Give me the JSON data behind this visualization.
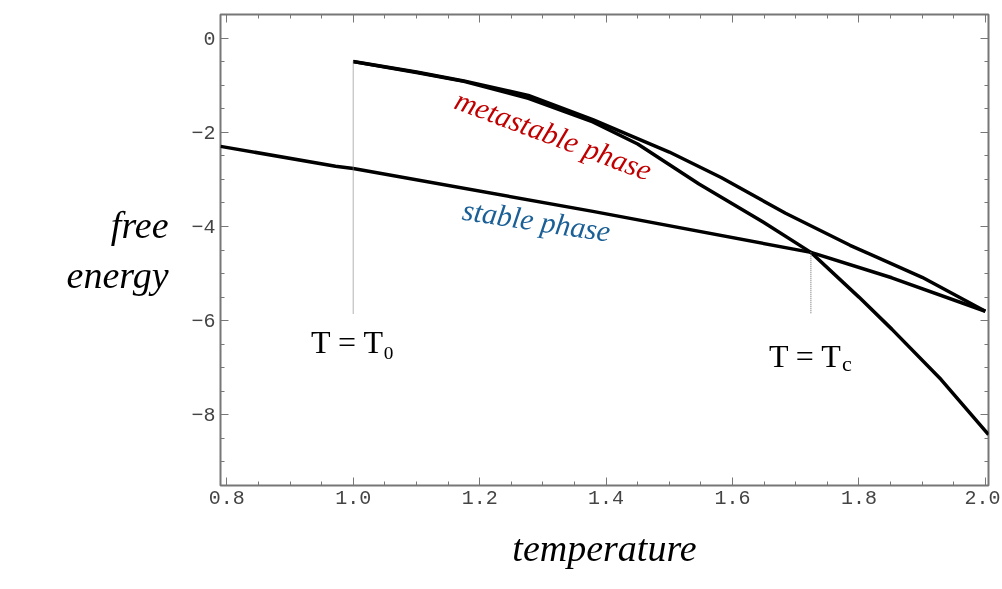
{
  "chart_data": {
    "type": "line",
    "xlabel": "temperature",
    "ylabel": "free energy",
    "xlim": [
      0.79,
      2.005
    ],
    "ylim": [
      -9.5,
      0.5
    ],
    "xticks": [
      {
        "value": 0.8,
        "label": "0.8"
      },
      {
        "value": 1.0,
        "label": "1.0"
      },
      {
        "value": 1.2,
        "label": "1.2"
      },
      {
        "value": 1.4,
        "label": "1.4"
      },
      {
        "value": 1.6,
        "label": "1.6"
      },
      {
        "value": 1.8,
        "label": "1.8"
      },
      {
        "value": 2.0,
        "label": "2.0"
      }
    ],
    "yticks": [
      0,
      -2,
      -4,
      -6,
      -8
    ],
    "grid": false,
    "marker": "none",
    "series": [
      {
        "color": "#000000",
        "x": [
          0.79,
          0.972,
          1.0,
          1.379,
          1.724,
          1.852,
          2.0
        ],
        "values": [
          -2.3,
          -2.72,
          -2.77,
          -3.68,
          -4.55,
          -5.09,
          -5.8
        ]
      },
      {
        "color": "#000000",
        "x": [
          1.0,
          1.1,
          1.175,
          1.277,
          1.379,
          1.5,
          1.582,
          1.684,
          1.786,
          1.9,
          2.0
        ],
        "values": [
          -0.5,
          -0.72,
          -0.91,
          -1.22,
          -1.73,
          -2.42,
          -2.96,
          -3.72,
          -4.4,
          -5.08,
          -5.8
        ]
      },
      {
        "color": "#000000",
        "x": [
          1.0,
          1.1,
          1.175,
          1.277,
          1.379,
          1.45,
          1.547,
          1.649,
          1.724,
          1.8,
          1.852,
          1.93,
          2.005
        ],
        "values": [
          -0.5,
          -0.73,
          -0.92,
          -1.28,
          -1.78,
          -2.25,
          -3.1,
          -3.91,
          -4.55,
          -5.5,
          -6.18,
          -7.25,
          -8.42
        ]
      },
      {
        "color": "#808080",
        "line_style": "dotted",
        "x": [
          1.0,
          1.0
        ],
        "values": [
          -0.5,
          -5.86
        ]
      },
      {
        "color": "#808080",
        "line_style": "dotted",
        "x": [
          1.724,
          1.724
        ],
        "values": [
          -4.55,
          -5.86
        ]
      }
    ],
    "annotations": [
      "metastable phase",
      "stable phase",
      "T = T₀",
      "T = T$_{c}$"
    ]
  }
}
